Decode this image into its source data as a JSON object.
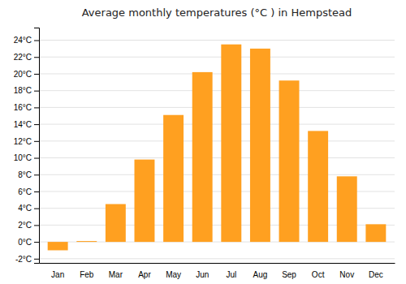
{
  "chart_data": {
    "type": "bar",
    "title": "Average monthly temperatures (°C ) in Hempstead",
    "categories": [
      "Jan",
      "Feb",
      "Mar",
      "Apr",
      "May",
      "Jun",
      "Jul",
      "Aug",
      "Sep",
      "Oct",
      "Nov",
      "Dec"
    ],
    "values": [
      -1.0,
      0.1,
      4.5,
      9.8,
      15.1,
      20.2,
      23.5,
      23.0,
      19.2,
      13.2,
      7.8,
      2.1
    ],
    "color": "#FFA020",
    "ylim": [
      -2.5,
      25.5
    ],
    "yticks": [
      {
        "value": -2,
        "label": "-2°C"
      },
      {
        "value": 0,
        "label": "0°C"
      },
      {
        "value": 2,
        "label": "2°C"
      },
      {
        "value": 4,
        "label": "4°C"
      },
      {
        "value": 6,
        "label": "6°C"
      },
      {
        "value": 8,
        "label": "8°C"
      },
      {
        "value": 10,
        "label": "10°C"
      },
      {
        "value": 12,
        "label": "12°C"
      },
      {
        "value": 14,
        "label": "14°C"
      },
      {
        "value": 16,
        "label": "16°C"
      },
      {
        "value": 18,
        "label": "18°C"
      },
      {
        "value": 20,
        "label": "20°C"
      },
      {
        "value": 22,
        "label": "22°C"
      },
      {
        "value": 24,
        "label": "24°C"
      }
    ],
    "grid": true
  }
}
